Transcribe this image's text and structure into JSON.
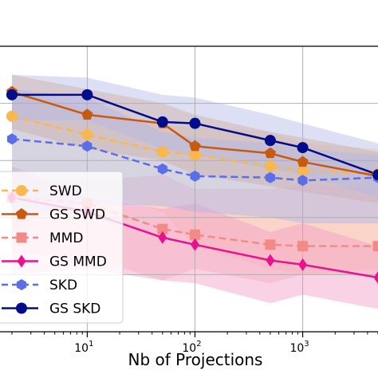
{
  "chart_data": {
    "type": "line",
    "xlabel": "Nb of Projections",
    "xscale": "log",
    "xlim": [
      1.55,
      5000
    ],
    "ylim": [
      0,
      1
    ],
    "grid": true,
    "legend_position": "left-center",
    "x_ticks": [
      {
        "value": 10,
        "base": "10",
        "exp": "1"
      },
      {
        "value": 100,
        "base": "10",
        "exp": "2"
      },
      {
        "value": 1000,
        "base": "10",
        "exp": "3"
      }
    ],
    "series": [
      {
        "name": "SWD",
        "color": "#f9b84e",
        "fill": "#fcd9a6",
        "dash": true,
        "marker": "circle",
        "x": [
          2,
          10,
          50,
          100,
          500,
          1000,
          5000
        ],
        "y": [
          0.755,
          0.69,
          0.63,
          0.62,
          0.58,
          0.565,
          0.555
        ],
        "lower": [
          0.35,
          0.5,
          0.42,
          0.3,
          0.22,
          0.2,
          0.22
        ],
        "upper": [
          0.85,
          0.78,
          0.72,
          0.72,
          0.7,
          0.66,
          0.64
        ]
      },
      {
        "name": "GS SWD",
        "color": "#c75a0e",
        "fill": "#e6a66b",
        "dash": false,
        "marker": "pentagon",
        "x": [
          2,
          10,
          50,
          100,
          500,
          1000,
          5000
        ],
        "y": [
          0.84,
          0.76,
          0.73,
          0.65,
          0.625,
          0.595,
          0.545
        ],
        "lower": [
          0.71,
          0.64,
          0.6,
          0.55,
          0.51,
          0.49,
          0.45
        ],
        "upper": [
          0.9,
          0.85,
          0.8,
          0.76,
          0.7,
          0.68,
          0.63
        ]
      },
      {
        "name": "MMD",
        "color": "#f48a86",
        "fill": "#f7b5b3",
        "dash": true,
        "marker": "square",
        "x": [
          2,
          10,
          50,
          100,
          500,
          1000,
          5000
        ],
        "y": [
          0.47,
          0.45,
          0.36,
          0.34,
          0.305,
          0.3,
          0.3
        ],
        "lower": [
          0.28,
          0.26,
          0.18,
          0.22,
          0.17,
          0.2,
          0.2
        ],
        "upper": [
          0.52,
          0.53,
          0.55,
          0.5,
          0.5,
          0.52,
          0.5
        ]
      },
      {
        "name": "GS MMD",
        "color": "#e8128e",
        "fill": "#f49bc7",
        "dash": false,
        "marker": "diamond",
        "x": [
          2,
          10,
          50,
          100,
          500,
          1000,
          5000
        ],
        "y": [
          0.47,
          0.42,
          0.33,
          0.305,
          0.25,
          0.235,
          0.19
        ],
        "lower": [
          0.2,
          0.22,
          0.18,
          0.17,
          0.1,
          0.13,
          0.08
        ],
        "upper": [
          0.58,
          0.47,
          0.43,
          0.45,
          0.35,
          0.38,
          0.3
        ]
      },
      {
        "name": "SKD",
        "color": "#5b6ee8",
        "fill": "#a8b3ef",
        "dash": true,
        "marker": "hexagon",
        "x": [
          2,
          10,
          50,
          100,
          500,
          1000,
          5000
        ],
        "y": [
          0.675,
          0.65,
          0.57,
          0.545,
          0.54,
          0.53,
          0.54
        ],
        "lower": [
          0.4,
          0.45,
          0.44,
          0.42,
          0.4,
          0.38,
          0.38
        ],
        "upper": [
          0.85,
          0.82,
          0.7,
          0.68,
          0.66,
          0.64,
          0.62
        ]
      },
      {
        "name": "GS SKD",
        "color": "#000c8c",
        "fill": "#b4b8e8",
        "dash": false,
        "marker": "circle",
        "x": [
          2,
          10,
          50,
          100,
          500,
          1000,
          5000
        ],
        "y": [
          0.83,
          0.83,
          0.735,
          0.73,
          0.67,
          0.645,
          0.55
        ],
        "lower": [
          0.74,
          0.74,
          0.64,
          0.62,
          0.57,
          0.55,
          0.47
        ],
        "upper": [
          0.9,
          0.89,
          0.83,
          0.82,
          0.76,
          0.73,
          0.66
        ]
      }
    ]
  }
}
